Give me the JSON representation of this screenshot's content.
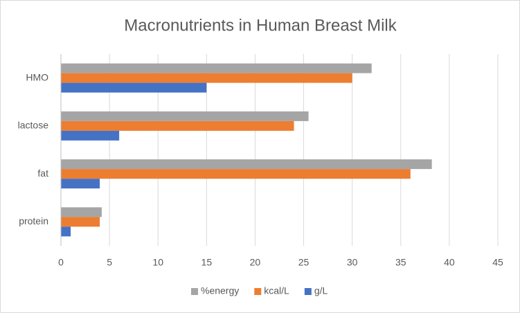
{
  "chart_data": {
    "type": "hbar",
    "title": "Macronutrients in Human Breast Milk",
    "categories": [
      "protein",
      "fat",
      "lactose",
      "HMO"
    ],
    "series": [
      {
        "name": "%energy",
        "color": "#a5a5a5",
        "values": [
          4.2,
          38.2,
          25.5,
          32
        ]
      },
      {
        "name": "kcal/L",
        "color": "#ed7d31",
        "values": [
          4,
          36,
          24,
          30
        ]
      },
      {
        "name": "g/L",
        "color": "#4472c4",
        "values": [
          1,
          4,
          6,
          15
        ]
      }
    ],
    "xlim": [
      0,
      45
    ],
    "xticks": [
      0,
      5,
      10,
      15,
      20,
      25,
      30,
      35,
      40,
      45
    ],
    "grid": true,
    "legend": "bottom"
  }
}
